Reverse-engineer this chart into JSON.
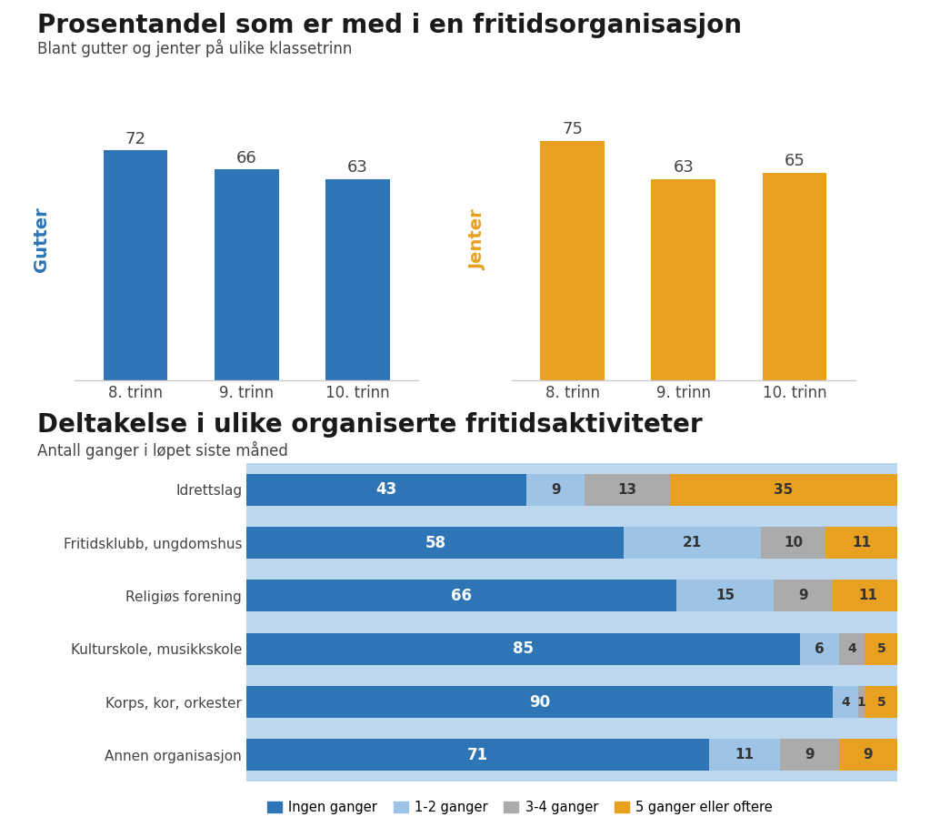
{
  "title_top": "Prosentandel som er med i en fritidsorganisasjon",
  "subtitle_top": "Blant gutter og jenter på ulike klassetrinn",
  "gutter_label": "Gutter",
  "jenter_label": "Jenter",
  "bar_categories": [
    "8. trinn",
    "9. trinn",
    "10. trinn"
  ],
  "gutter_values": [
    72,
    66,
    63
  ],
  "jenter_values": [
    75,
    63,
    65
  ],
  "gutter_color": "#2E75B6",
  "jenter_color": "#E8A020",
  "gutter_label_color": "#2E75B6",
  "jenter_label_color": "#E8A020",
  "title_bottom": "Deltakelse i ulike organiserte fritidsaktiviteter",
  "subtitle_bottom": "Antall ganger i løpet siste måned",
  "bottom_bg_color": "#BDD7EE",
  "top_bg_color": "#FFFFFF",
  "stacked_categories": [
    "Idrettslag",
    "Fritidsklubb, ungdomshus",
    "Religiøs forening",
    "Kulturskole, musikkskole",
    "Korps, kor, orkester",
    "Annen organisasjon"
  ],
  "stacked_data": {
    "Ingen ganger": [
      43,
      58,
      66,
      85,
      90,
      71
    ],
    "1-2 ganger": [
      9,
      21,
      15,
      6,
      4,
      11
    ],
    "3-4 ganger": [
      13,
      10,
      9,
      4,
      1,
      9
    ],
    "5 ganger eller oftere": [
      35,
      11,
      11,
      5,
      5,
      9
    ]
  },
  "stacked_colors": {
    "Ingen ganger": "#2E75B6",
    "1-2 ganger": "#9DC3E6",
    "3-4 ganger": "#ABABAB",
    "5 ganger eller oftere": "#E8A020"
  },
  "legend_order": [
    "Ingen ganger",
    "1-2 ganger",
    "3-4 ganger",
    "5 ganger eller oftere"
  ]
}
